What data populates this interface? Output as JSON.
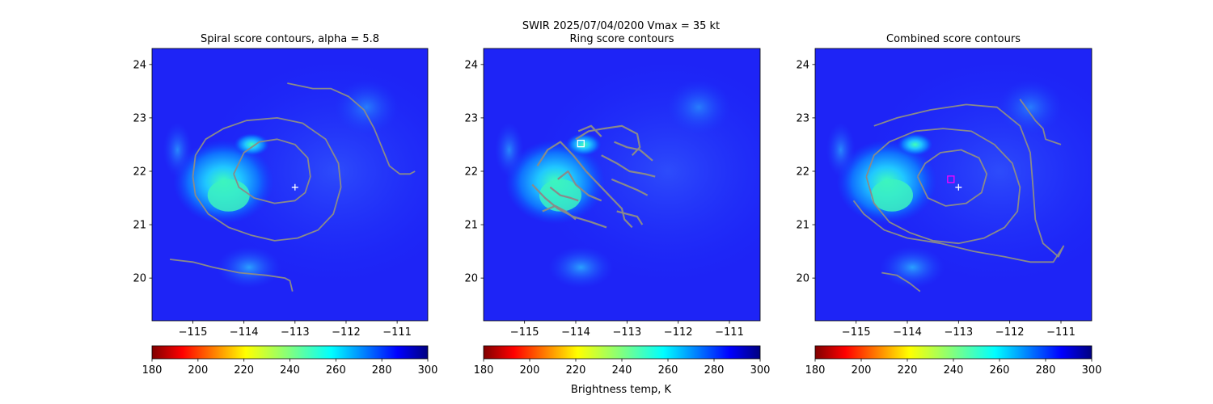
{
  "suptitle_line1": "SWIR  2025/07/04/0200    Vmax = 35 kt",
  "colorbar_label": "Brightness temp, K",
  "chart_data": [
    {
      "type": "heatmap",
      "title": "Spiral score contours, alpha =  5.8",
      "xlim": [
        -115.8,
        -110.4
      ],
      "ylim": [
        19.2,
        24.3
      ],
      "x_ticks": [
        -115,
        -114,
        -113,
        -112,
        -111
      ],
      "x_tick_labels": [
        "−115",
        "−114",
        "−113",
        "−112",
        "−111"
      ],
      "y_ticks": [
        20,
        21,
        22,
        23,
        24
      ],
      "y_tick_labels": [
        "20",
        "21",
        "22",
        "23",
        "24"
      ],
      "contour_color": "#8a8a8a",
      "markers": [
        {
          "symbol": "plus",
          "x": -113.0,
          "y": 21.7,
          "color": "#ffffff"
        }
      ],
      "contours": [
        [
          [
            -114.2,
            21.95
          ],
          [
            -114.0,
            22.35
          ],
          [
            -113.7,
            22.55
          ],
          [
            -113.35,
            22.6
          ],
          [
            -113.0,
            22.5
          ],
          [
            -112.75,
            22.25
          ],
          [
            -112.7,
            21.9
          ],
          [
            -112.8,
            21.6
          ],
          [
            -113.0,
            21.45
          ],
          [
            -113.4,
            21.4
          ],
          [
            -113.8,
            21.5
          ],
          [
            -114.1,
            21.7
          ],
          [
            -114.2,
            21.95
          ]
        ],
        [
          [
            -115.0,
            21.9
          ],
          [
            -114.95,
            22.3
          ],
          [
            -114.75,
            22.6
          ],
          [
            -114.4,
            22.8
          ],
          [
            -113.95,
            22.95
          ],
          [
            -113.35,
            23.0
          ],
          [
            -112.85,
            22.9
          ],
          [
            -112.4,
            22.6
          ],
          [
            -112.15,
            22.15
          ],
          [
            -112.1,
            21.7
          ],
          [
            -112.25,
            21.2
          ],
          [
            -112.55,
            20.9
          ],
          [
            -112.95,
            20.75
          ],
          [
            -113.4,
            20.7
          ],
          [
            -113.85,
            20.8
          ],
          [
            -114.3,
            20.95
          ],
          [
            -114.7,
            21.2
          ],
          [
            -114.95,
            21.55
          ],
          [
            -115.0,
            21.9
          ]
        ],
        [
          [
            -113.15,
            23.65
          ],
          [
            -112.65,
            23.55
          ],
          [
            -112.3,
            23.55
          ],
          [
            -111.95,
            23.4
          ],
          [
            -111.65,
            23.15
          ],
          [
            -111.45,
            22.8
          ],
          [
            -111.3,
            22.45
          ],
          [
            -111.15,
            22.1
          ],
          [
            -110.95,
            21.95
          ],
          [
            -110.75,
            21.95
          ],
          [
            -110.65,
            22.0
          ]
        ],
        [
          [
            -115.45,
            20.35
          ],
          [
            -115.0,
            20.3
          ],
          [
            -114.6,
            20.2
          ],
          [
            -114.1,
            20.1
          ],
          [
            -113.55,
            20.05
          ],
          [
            -113.2,
            20.0
          ],
          [
            -113.1,
            19.95
          ],
          [
            -113.05,
            19.75
          ]
        ]
      ]
    },
    {
      "type": "heatmap",
      "title": "Ring score contours",
      "xlim": [
        -115.8,
        -110.4
      ],
      "ylim": [
        19.2,
        24.3
      ],
      "x_ticks": [
        -115,
        -114,
        -113,
        -112,
        -111
      ],
      "x_tick_labels": [
        "−115",
        "−114",
        "−113",
        "−112",
        "−111"
      ],
      "y_ticks": [
        20,
        21,
        22,
        23,
        24
      ],
      "y_tick_labels": [
        "20",
        "21",
        "22",
        "23",
        "24"
      ],
      "contour_color": "#8a8a8a",
      "markers": [
        {
          "symbol": "square",
          "x": -113.9,
          "y": 22.52,
          "color": "#ffffff"
        }
      ],
      "contours": [
        [
          [
            -114.0,
            22.6
          ],
          [
            -113.75,
            22.75
          ],
          [
            -113.45,
            22.8
          ],
          [
            -113.1,
            22.85
          ],
          [
            -112.8,
            22.7
          ],
          [
            -112.75,
            22.45
          ],
          [
            -112.9,
            22.3
          ]
        ],
        [
          [
            -114.75,
            22.1
          ],
          [
            -114.55,
            22.4
          ],
          [
            -114.3,
            22.55
          ],
          [
            -114.05,
            22.3
          ],
          [
            -113.8,
            22.0
          ],
          [
            -113.55,
            21.75
          ],
          [
            -113.3,
            21.5
          ],
          [
            -113.1,
            21.3
          ],
          [
            -113.05,
            21.1
          ],
          [
            -112.9,
            20.95
          ]
        ],
        [
          [
            -114.85,
            21.75
          ],
          [
            -114.6,
            21.5
          ],
          [
            -114.35,
            21.3
          ],
          [
            -114.05,
            21.15
          ],
          [
            -113.7,
            21.05
          ],
          [
            -113.4,
            20.95
          ]
        ],
        [
          [
            -114.35,
            21.85
          ],
          [
            -114.15,
            22.0
          ],
          [
            -114.0,
            21.75
          ],
          [
            -113.75,
            21.55
          ],
          [
            -113.5,
            21.45
          ]
        ],
        [
          [
            -114.5,
            21.7
          ],
          [
            -114.3,
            21.55
          ],
          [
            -114.1,
            21.5
          ],
          [
            -113.95,
            21.45
          ]
        ],
        [
          [
            -113.5,
            22.3
          ],
          [
            -113.2,
            22.15
          ],
          [
            -112.95,
            22.0
          ],
          [
            -112.65,
            21.95
          ],
          [
            -112.45,
            21.9
          ]
        ],
        [
          [
            -113.3,
            21.85
          ],
          [
            -113.05,
            21.75
          ],
          [
            -112.8,
            21.65
          ],
          [
            -112.6,
            21.55
          ]
        ],
        [
          [
            -113.25,
            22.55
          ],
          [
            -113.0,
            22.45
          ],
          [
            -112.75,
            22.4
          ],
          [
            -112.5,
            22.2
          ]
        ],
        [
          [
            -113.2,
            21.25
          ],
          [
            -113.0,
            21.2
          ],
          [
            -112.8,
            21.15
          ],
          [
            -112.7,
            21.0
          ]
        ],
        [
          [
            -114.65,
            21.25
          ],
          [
            -114.4,
            21.35
          ],
          [
            -114.2,
            21.25
          ],
          [
            -114.0,
            21.1
          ]
        ],
        [
          [
            -113.95,
            22.75
          ],
          [
            -113.7,
            22.85
          ],
          [
            -113.5,
            22.65
          ]
        ]
      ]
    },
    {
      "type": "heatmap",
      "title": "Combined score contours",
      "xlim": [
        -115.8,
        -110.4
      ],
      "ylim": [
        19.2,
        24.3
      ],
      "x_ticks": [
        -115,
        -114,
        -113,
        -112,
        -111
      ],
      "x_tick_labels": [
        "−115",
        "−114",
        "−113",
        "−112",
        "−111"
      ],
      "y_ticks": [
        20,
        21,
        22,
        23,
        24
      ],
      "y_tick_labels": [
        "20",
        "21",
        "22",
        "23",
        "24"
      ],
      "contour_color": "#8a8a8a",
      "markers": [
        {
          "symbol": "square",
          "x": -113.15,
          "y": 21.85,
          "color": "#ff00ff"
        },
        {
          "symbol": "plus",
          "x": -113.0,
          "y": 21.7,
          "color": "#ffffff"
        }
      ],
      "contours": [
        [
          [
            -113.8,
            21.9
          ],
          [
            -113.65,
            22.15
          ],
          [
            -113.35,
            22.35
          ],
          [
            -112.95,
            22.4
          ],
          [
            -112.6,
            22.25
          ],
          [
            -112.45,
            21.95
          ],
          [
            -112.55,
            21.6
          ],
          [
            -112.85,
            21.4
          ],
          [
            -113.25,
            21.35
          ],
          [
            -113.6,
            21.5
          ],
          [
            -113.8,
            21.9
          ]
        ],
        [
          [
            -114.8,
            21.9
          ],
          [
            -114.65,
            22.3
          ],
          [
            -114.35,
            22.55
          ],
          [
            -113.85,
            22.75
          ],
          [
            -113.3,
            22.8
          ],
          [
            -112.75,
            22.75
          ],
          [
            -112.3,
            22.5
          ],
          [
            -111.95,
            22.15
          ],
          [
            -111.8,
            21.7
          ],
          [
            -111.85,
            21.25
          ],
          [
            -112.1,
            20.95
          ],
          [
            -112.5,
            20.75
          ],
          [
            -113.0,
            20.65
          ],
          [
            -113.5,
            20.7
          ],
          [
            -113.95,
            20.85
          ],
          [
            -114.35,
            21.05
          ],
          [
            -114.65,
            21.4
          ],
          [
            -114.8,
            21.9
          ]
        ],
        [
          [
            -114.65,
            22.85
          ],
          [
            -114.2,
            23.0
          ],
          [
            -113.55,
            23.15
          ],
          [
            -112.85,
            23.25
          ],
          [
            -112.25,
            23.2
          ],
          [
            -111.8,
            22.85
          ],
          [
            -111.6,
            22.35
          ],
          [
            -111.55,
            21.75
          ],
          [
            -111.5,
            21.1
          ],
          [
            -111.35,
            20.65
          ],
          [
            -111.05,
            20.4
          ],
          [
            -110.95,
            20.6
          ],
          [
            -111.15,
            20.3
          ],
          [
            -111.6,
            20.3
          ],
          [
            -112.1,
            20.4
          ],
          [
            -112.7,
            20.5
          ],
          [
            -113.35,
            20.65
          ],
          [
            -114.0,
            20.75
          ],
          [
            -114.45,
            20.9
          ],
          [
            -114.85,
            21.2
          ],
          [
            -115.05,
            21.45
          ]
        ],
        [
          [
            -111.8,
            23.35
          ],
          [
            -111.65,
            23.15
          ],
          [
            -111.5,
            22.95
          ],
          [
            -111.35,
            22.8
          ],
          [
            -111.3,
            22.6
          ],
          [
            -111.15,
            22.55
          ],
          [
            -111.0,
            22.5
          ]
        ],
        [
          [
            -114.5,
            20.1
          ],
          [
            -114.2,
            20.05
          ],
          [
            -113.95,
            19.9
          ],
          [
            -113.75,
            19.75
          ]
        ]
      ]
    }
  ],
  "colorbar": {
    "range": [
      180,
      300
    ],
    "ticks": [
      180,
      200,
      220,
      240,
      260,
      280,
      300
    ],
    "tick_labels": [
      "180",
      "200",
      "220",
      "240",
      "260",
      "280",
      "300"
    ],
    "colormap": "jet_r"
  }
}
